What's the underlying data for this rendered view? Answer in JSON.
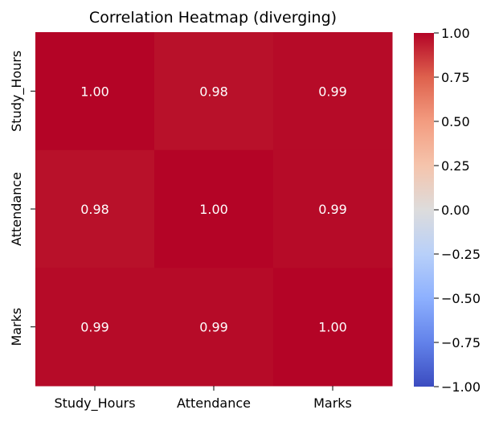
{
  "chart_data": {
    "type": "heatmap",
    "title": "Correlation Heatmap (diverging)",
    "xlabel": "",
    "ylabel": "",
    "x_categories": [
      "Study_Hours",
      "Attendance",
      "Marks"
    ],
    "y_categories": [
      "Study_Hours",
      "Attendance",
      "Marks"
    ],
    "values": [
      [
        1.0,
        0.98,
        0.99
      ],
      [
        0.98,
        1.0,
        0.99
      ],
      [
        0.99,
        0.99,
        1.0
      ]
    ],
    "cell_labels": [
      [
        "1.00",
        "0.98",
        "0.99"
      ],
      [
        "0.98",
        "1.00",
        "0.99"
      ],
      [
        "0.99",
        "0.99",
        "1.00"
      ]
    ],
    "colormap": "coolwarm",
    "vmin": -1.0,
    "vmax": 1.0,
    "colorbar_ticks": [
      "1.00",
      "0.75",
      "0.50",
      "0.25",
      "0.00",
      "−0.25",
      "−0.50",
      "−0.75",
      "−1.00"
    ],
    "colorbar_tick_values": [
      1.0,
      0.75,
      0.5,
      0.25,
      0.0,
      -0.25,
      -0.5,
      -0.75,
      -1.0
    ],
    "colors": {
      "low": "#3b4cc0",
      "mid": "#dddddd",
      "high": "#b40426",
      "annotation_text": "#ffffff"
    },
    "grid": false,
    "legend": "colorbar-right"
  }
}
